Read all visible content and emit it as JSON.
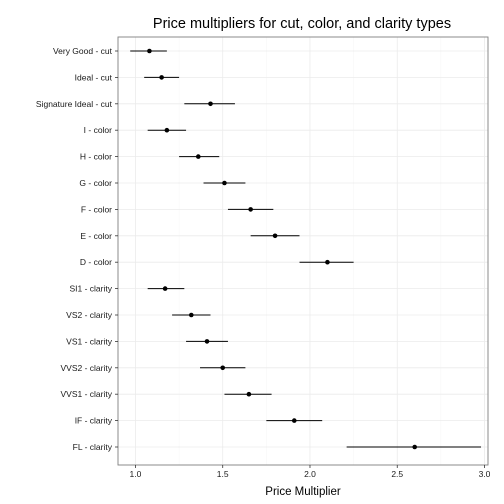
{
  "chart_data": {
    "type": "scatter",
    "title": "Price multipliers for cut, color, and clarity types",
    "xlabel": "Price Multiplier",
    "ylabel": "",
    "xlim": [
      0.9,
      3.02
    ],
    "xticks": [
      1.0,
      1.5,
      2.0,
      2.5,
      3.0
    ],
    "xtick_labels": [
      "1.0",
      "1.5",
      "2.0",
      "2.5",
      "3.0"
    ],
    "grid": true,
    "legend": "none",
    "categories": [
      "Very Good - cut",
      "Ideal - cut",
      "Signature Ideal - cut",
      "I - color",
      "H - color",
      "G - color",
      "F - color",
      "E - color",
      "D - color",
      "SI1 - clarity",
      "VS2 - clarity",
      "VS1 - clarity",
      "VVS2 - clarity",
      "VVS1 - clarity",
      "IF - clarity",
      "FL - clarity"
    ],
    "estimates": [
      1.08,
      1.15,
      1.43,
      1.18,
      1.36,
      1.51,
      1.66,
      1.8,
      2.1,
      1.17,
      1.32,
      1.41,
      1.5,
      1.65,
      1.91,
      2.6
    ],
    "lower": [
      0.97,
      1.05,
      1.28,
      1.07,
      1.25,
      1.39,
      1.53,
      1.66,
      1.94,
      1.07,
      1.21,
      1.29,
      1.37,
      1.51,
      1.75,
      2.21
    ],
    "upper": [
      1.18,
      1.25,
      1.57,
      1.29,
      1.48,
      1.63,
      1.79,
      1.94,
      2.25,
      1.28,
      1.43,
      1.53,
      1.63,
      1.78,
      2.07,
      2.98
    ]
  }
}
